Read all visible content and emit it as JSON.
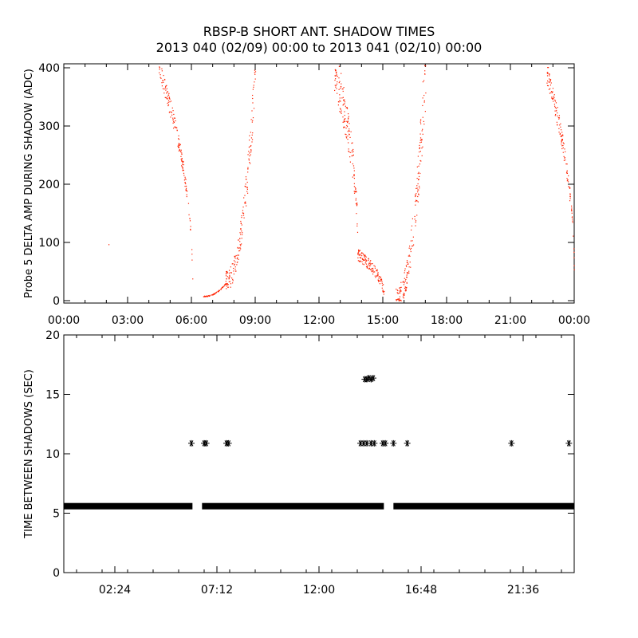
{
  "title": "RBSP-B SHORT ANT. SHADOW TIMES",
  "subtitle": "2013 040 (02/09) 00:00 to 2013 041 (02/10) 00:00",
  "chart_data": [
    {
      "type": "scatter",
      "id": "top",
      "ylabel": "Probe 5 DELTA AMP DURING SHADOW (ADC)",
      "xlabel": "",
      "xlim": [
        "00:00",
        "24:00"
      ],
      "ylim": [
        0,
        400
      ],
      "x_ticks": [
        "00:00",
        "03:00",
        "06:00",
        "09:00",
        "12:00",
        "15:00",
        "18:00",
        "21:00",
        "00:00"
      ],
      "y_ticks": [
        "0",
        "100",
        "200",
        "300",
        "400"
      ],
      "grid": false,
      "marker": "dot",
      "color": "#ff2200",
      "segments": [
        {
          "x_start_hr": 4.45,
          "x_end_hr": 6.05,
          "y_start": 400,
          "y_end": 3,
          "spread": 25,
          "n": 150
        },
        {
          "x_start_hr": 6.55,
          "x_end_hr": 7.6,
          "y_start": 8,
          "y_end": 30,
          "spread": 3,
          "n": 70
        },
        {
          "x_start_hr": 7.6,
          "x_end_hr": 9.0,
          "y_start": 35,
          "y_end": 400,
          "spread": 70,
          "n": 170
        },
        {
          "x_start_hr": 12.7,
          "x_end_hr": 13.8,
          "y_start": 400,
          "y_end": 80,
          "spread": 60,
          "n": 150
        },
        {
          "x_start_hr": 13.8,
          "x_end_hr": 15.05,
          "y_start": 80,
          "y_end": 3,
          "spread": 35,
          "n": 130
        },
        {
          "x_start_hr": 15.6,
          "x_end_hr": 17.0,
          "y_start": 5,
          "y_end": 400,
          "spread": 90,
          "n": 180
        },
        {
          "x_start_hr": 22.7,
          "x_end_hr": 24.0,
          "y_start": 390,
          "y_end": 12,
          "spread": 30,
          "n": 140
        }
      ],
      "points": [
        [
          2.1,
          97
        ]
      ]
    },
    {
      "type": "scatter",
      "id": "bottom",
      "ylabel": "TIME BETWEEN SHADOWS (SEC)",
      "xlabel": "",
      "xlim": [
        "00:00",
        "24:00"
      ],
      "ylim": [
        0,
        20
      ],
      "x_ticks": [
        "02:24",
        "07:12",
        "12:00",
        "16:48",
        "21:36"
      ],
      "y_ticks": [
        "0",
        "5",
        "10",
        "15",
        "20"
      ],
      "grid": false,
      "marker": "asterisk",
      "color": "#000000",
      "baseline": {
        "y": 5.5,
        "segments_hr": [
          [
            0,
            6.05
          ],
          [
            6.5,
            15.05
          ],
          [
            15.5,
            24.0
          ]
        ]
      },
      "points": [
        [
          6.0,
          10.9
        ],
        [
          6.6,
          10.9
        ],
        [
          6.7,
          10.9
        ],
        [
          7.65,
          10.9
        ],
        [
          7.75,
          10.9
        ],
        [
          13.95,
          10.9
        ],
        [
          14.1,
          10.9
        ],
        [
          14.25,
          10.9
        ],
        [
          14.45,
          10.9
        ],
        [
          14.6,
          10.9
        ],
        [
          15.0,
          10.9
        ],
        [
          15.12,
          10.9
        ],
        [
          15.5,
          10.9
        ],
        [
          16.15,
          10.9
        ],
        [
          21.05,
          10.9
        ],
        [
          23.75,
          10.9
        ],
        [
          14.15,
          16.4
        ],
        [
          14.25,
          16.4
        ],
        [
          14.35,
          16.5
        ],
        [
          14.45,
          16.4
        ],
        [
          14.55,
          16.5
        ]
      ]
    }
  ]
}
